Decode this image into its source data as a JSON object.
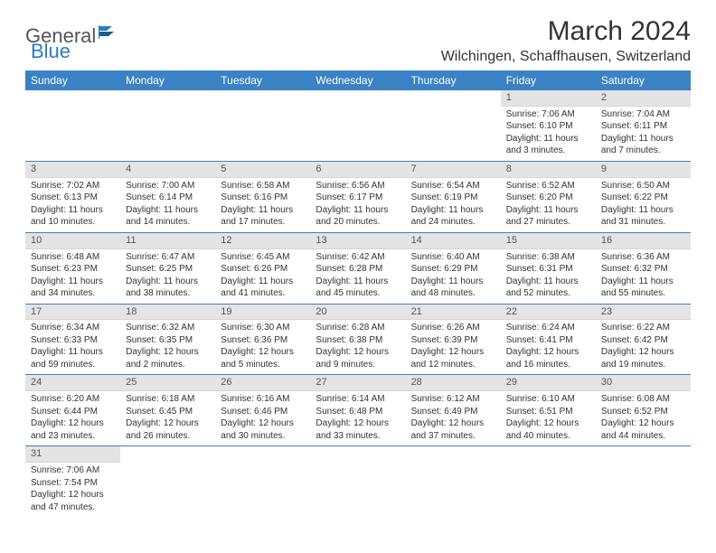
{
  "brand": {
    "part1": "General",
    "part2": "Blue"
  },
  "title": "March 2024",
  "location": "Wilchingen, Schaffhausen, Switzerland",
  "weekdays": [
    "Sunday",
    "Monday",
    "Tuesday",
    "Wednesday",
    "Thursday",
    "Friday",
    "Saturday"
  ],
  "colors": {
    "header_bg": "#3b82c4",
    "rule": "#3b82c4",
    "daynum_bg": "#e4e4e4"
  },
  "weeks": [
    [
      {
        "n": "",
        "sr": "",
        "ss": "",
        "dl": ""
      },
      {
        "n": "",
        "sr": "",
        "ss": "",
        "dl": ""
      },
      {
        "n": "",
        "sr": "",
        "ss": "",
        "dl": ""
      },
      {
        "n": "",
        "sr": "",
        "ss": "",
        "dl": ""
      },
      {
        "n": "",
        "sr": "",
        "ss": "",
        "dl": ""
      },
      {
        "n": "1",
        "sr": "Sunrise: 7:06 AM",
        "ss": "Sunset: 6:10 PM",
        "dl": "Daylight: 11 hours and 3 minutes."
      },
      {
        "n": "2",
        "sr": "Sunrise: 7:04 AM",
        "ss": "Sunset: 6:11 PM",
        "dl": "Daylight: 11 hours and 7 minutes."
      }
    ],
    [
      {
        "n": "3",
        "sr": "Sunrise: 7:02 AM",
        "ss": "Sunset: 6:13 PM",
        "dl": "Daylight: 11 hours and 10 minutes."
      },
      {
        "n": "4",
        "sr": "Sunrise: 7:00 AM",
        "ss": "Sunset: 6:14 PM",
        "dl": "Daylight: 11 hours and 14 minutes."
      },
      {
        "n": "5",
        "sr": "Sunrise: 6:58 AM",
        "ss": "Sunset: 6:16 PM",
        "dl": "Daylight: 11 hours and 17 minutes."
      },
      {
        "n": "6",
        "sr": "Sunrise: 6:56 AM",
        "ss": "Sunset: 6:17 PM",
        "dl": "Daylight: 11 hours and 20 minutes."
      },
      {
        "n": "7",
        "sr": "Sunrise: 6:54 AM",
        "ss": "Sunset: 6:19 PM",
        "dl": "Daylight: 11 hours and 24 minutes."
      },
      {
        "n": "8",
        "sr": "Sunrise: 6:52 AM",
        "ss": "Sunset: 6:20 PM",
        "dl": "Daylight: 11 hours and 27 minutes."
      },
      {
        "n": "9",
        "sr": "Sunrise: 6:50 AM",
        "ss": "Sunset: 6:22 PM",
        "dl": "Daylight: 11 hours and 31 minutes."
      }
    ],
    [
      {
        "n": "10",
        "sr": "Sunrise: 6:48 AM",
        "ss": "Sunset: 6:23 PM",
        "dl": "Daylight: 11 hours and 34 minutes."
      },
      {
        "n": "11",
        "sr": "Sunrise: 6:47 AM",
        "ss": "Sunset: 6:25 PM",
        "dl": "Daylight: 11 hours and 38 minutes."
      },
      {
        "n": "12",
        "sr": "Sunrise: 6:45 AM",
        "ss": "Sunset: 6:26 PM",
        "dl": "Daylight: 11 hours and 41 minutes."
      },
      {
        "n": "13",
        "sr": "Sunrise: 6:42 AM",
        "ss": "Sunset: 6:28 PM",
        "dl": "Daylight: 11 hours and 45 minutes."
      },
      {
        "n": "14",
        "sr": "Sunrise: 6:40 AM",
        "ss": "Sunset: 6:29 PM",
        "dl": "Daylight: 11 hours and 48 minutes."
      },
      {
        "n": "15",
        "sr": "Sunrise: 6:38 AM",
        "ss": "Sunset: 6:31 PM",
        "dl": "Daylight: 11 hours and 52 minutes."
      },
      {
        "n": "16",
        "sr": "Sunrise: 6:36 AM",
        "ss": "Sunset: 6:32 PM",
        "dl": "Daylight: 11 hours and 55 minutes."
      }
    ],
    [
      {
        "n": "17",
        "sr": "Sunrise: 6:34 AM",
        "ss": "Sunset: 6:33 PM",
        "dl": "Daylight: 11 hours and 59 minutes."
      },
      {
        "n": "18",
        "sr": "Sunrise: 6:32 AM",
        "ss": "Sunset: 6:35 PM",
        "dl": "Daylight: 12 hours and 2 minutes."
      },
      {
        "n": "19",
        "sr": "Sunrise: 6:30 AM",
        "ss": "Sunset: 6:36 PM",
        "dl": "Daylight: 12 hours and 5 minutes."
      },
      {
        "n": "20",
        "sr": "Sunrise: 6:28 AM",
        "ss": "Sunset: 6:38 PM",
        "dl": "Daylight: 12 hours and 9 minutes."
      },
      {
        "n": "21",
        "sr": "Sunrise: 6:26 AM",
        "ss": "Sunset: 6:39 PM",
        "dl": "Daylight: 12 hours and 12 minutes."
      },
      {
        "n": "22",
        "sr": "Sunrise: 6:24 AM",
        "ss": "Sunset: 6:41 PM",
        "dl": "Daylight: 12 hours and 16 minutes."
      },
      {
        "n": "23",
        "sr": "Sunrise: 6:22 AM",
        "ss": "Sunset: 6:42 PM",
        "dl": "Daylight: 12 hours and 19 minutes."
      }
    ],
    [
      {
        "n": "24",
        "sr": "Sunrise: 6:20 AM",
        "ss": "Sunset: 6:44 PM",
        "dl": "Daylight: 12 hours and 23 minutes."
      },
      {
        "n": "25",
        "sr": "Sunrise: 6:18 AM",
        "ss": "Sunset: 6:45 PM",
        "dl": "Daylight: 12 hours and 26 minutes."
      },
      {
        "n": "26",
        "sr": "Sunrise: 6:16 AM",
        "ss": "Sunset: 6:46 PM",
        "dl": "Daylight: 12 hours and 30 minutes."
      },
      {
        "n": "27",
        "sr": "Sunrise: 6:14 AM",
        "ss": "Sunset: 6:48 PM",
        "dl": "Daylight: 12 hours and 33 minutes."
      },
      {
        "n": "28",
        "sr": "Sunrise: 6:12 AM",
        "ss": "Sunset: 6:49 PM",
        "dl": "Daylight: 12 hours and 37 minutes."
      },
      {
        "n": "29",
        "sr": "Sunrise: 6:10 AM",
        "ss": "Sunset: 6:51 PM",
        "dl": "Daylight: 12 hours and 40 minutes."
      },
      {
        "n": "30",
        "sr": "Sunrise: 6:08 AM",
        "ss": "Sunset: 6:52 PM",
        "dl": "Daylight: 12 hours and 44 minutes."
      }
    ],
    [
      {
        "n": "31",
        "sr": "Sunrise: 7:06 AM",
        "ss": "Sunset: 7:54 PM",
        "dl": "Daylight: 12 hours and 47 minutes."
      },
      {
        "n": "",
        "sr": "",
        "ss": "",
        "dl": ""
      },
      {
        "n": "",
        "sr": "",
        "ss": "",
        "dl": ""
      },
      {
        "n": "",
        "sr": "",
        "ss": "",
        "dl": ""
      },
      {
        "n": "",
        "sr": "",
        "ss": "",
        "dl": ""
      },
      {
        "n": "",
        "sr": "",
        "ss": "",
        "dl": ""
      },
      {
        "n": "",
        "sr": "",
        "ss": "",
        "dl": ""
      }
    ]
  ]
}
